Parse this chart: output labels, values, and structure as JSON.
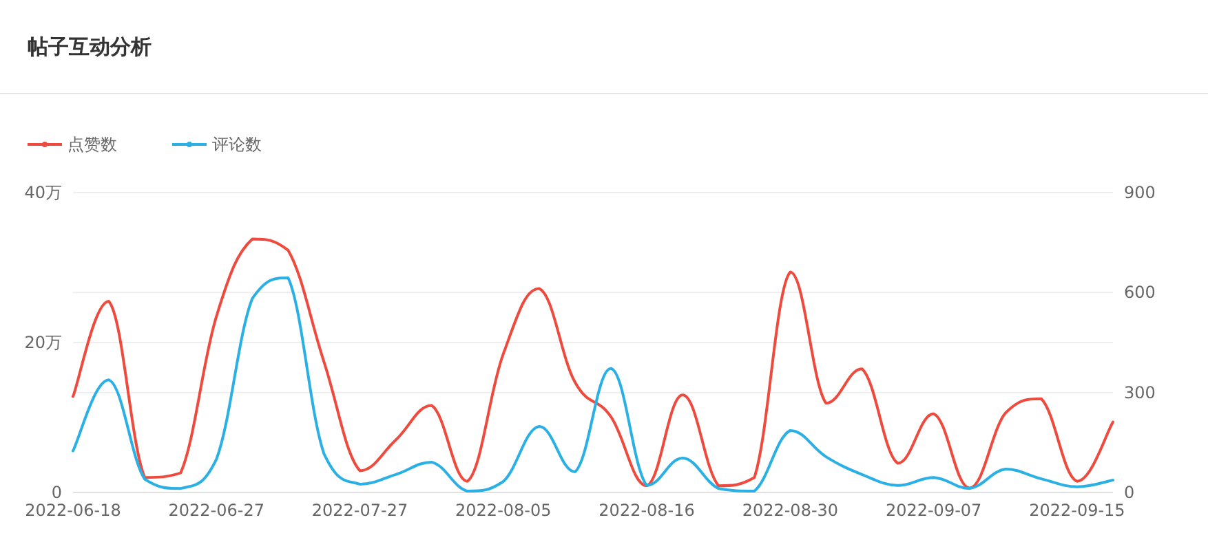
{
  "chart_data": {
    "type": "line",
    "title": "帖子互动分析",
    "categories": [
      "2022-06-18",
      null,
      null,
      null,
      "2022-06-27",
      null,
      null,
      null,
      "2022-07-27",
      null,
      null,
      null,
      "2022-08-05",
      null,
      null,
      null,
      "2022-08-16",
      null,
      null,
      null,
      "2022-08-30",
      null,
      null,
      null,
      "2022-09-07",
      null,
      null,
      null,
      "2022-09-15",
      null
    ],
    "series": [
      {
        "name": "点赞数",
        "color": "#ee4b3e",
        "values": [
          12.8,
          25.5,
          2.0,
          2.6,
          23.5,
          33.8,
          32.3,
          17.4,
          2.9,
          7.0,
          11.6,
          1.5,
          18.5,
          27.2,
          14.7,
          10.1,
          0.9,
          13.0,
          0.9,
          2.0,
          29.4,
          11.9,
          16.5,
          3.9,
          10.5,
          0.6,
          10.6,
          12.5,
          1.5,
          9.4
        ]
      },
      {
        "name": "评论数",
        "color": "#2bb0e6",
        "axis": "y2",
        "values": [
          125,
          338,
          40,
          12,
          100,
          582,
          644,
          116,
          25,
          54,
          91,
          4,
          33,
          198,
          62,
          372,
          21,
          103,
          12,
          4,
          186,
          107,
          54,
          21,
          45,
          12,
          70,
          41,
          17,
          37
        ]
      }
    ],
    "ylim": [
      0,
      40
    ],
    "yticks": [
      0,
      {
        "value": 20,
        "label": "20万"
      },
      {
        "value": 40,
        "label": "40万"
      }
    ],
    "y2lim": [
      0,
      900
    ],
    "y2ticks": [
      0,
      300,
      600,
      900
    ],
    "grid": true,
    "legend": "top left",
    "marker": "none",
    "line_style": "solid"
  }
}
